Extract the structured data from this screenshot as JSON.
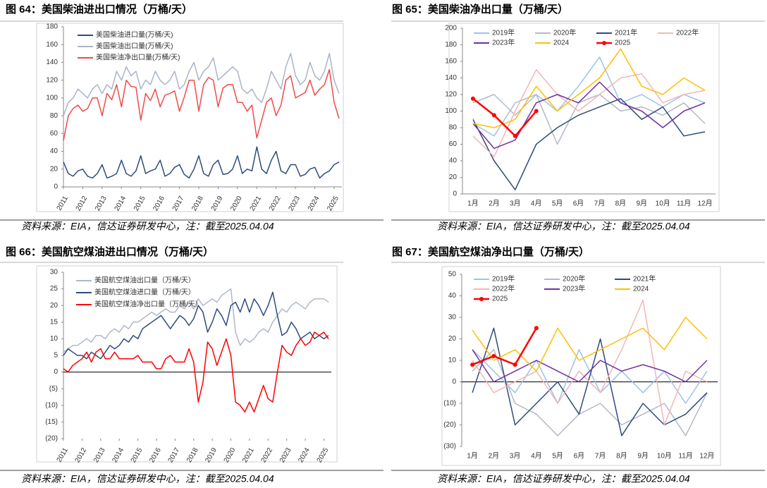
{
  "chart_data": [
    {
      "type": "line",
      "title": "图 64：美国柴油进出口情况（万桶/天）",
      "source": "资料来源：EIA，信达证券研发中心，注：截至2025.04.04",
      "legend_loc": "upper left",
      "xlim": [
        2011,
        2025.4
      ],
      "xticks": [
        2011,
        2012,
        2013,
        2014,
        2015,
        2016,
        2017,
        2018,
        2019,
        2020,
        2021,
        2022,
        2023,
        2024,
        2025
      ],
      "ylim": [
        0,
        180
      ],
      "yticks": [
        0,
        20,
        40,
        60,
        80,
        100,
        120,
        140,
        160,
        180
      ],
      "x": [
        2011,
        2011.25,
        2011.5,
        2011.75,
        2012,
        2012.25,
        2012.5,
        2012.75,
        2013,
        2013.25,
        2013.5,
        2013.75,
        2014,
        2014.25,
        2014.5,
        2014.75,
        2015,
        2015.25,
        2015.5,
        2015.75,
        2016,
        2016.25,
        2016.5,
        2016.75,
        2017,
        2017.25,
        2017.5,
        2017.75,
        2018,
        2018.25,
        2018.5,
        2018.75,
        2019,
        2019.25,
        2019.5,
        2019.75,
        2020,
        2020.25,
        2020.5,
        2020.75,
        2021,
        2021.25,
        2021.5,
        2021.75,
        2022,
        2022.25,
        2022.5,
        2022.75,
        2023,
        2023.25,
        2023.5,
        2023.75,
        2024,
        2024.25,
        2024.5,
        2024.75,
        2025,
        2025.25
      ],
      "series": [
        {
          "name": "美国柴油进口量(万桶/天)",
          "color": "#2f4b7c",
          "values": [
            28,
            15,
            12,
            18,
            20,
            12,
            10,
            15,
            25,
            10,
            12,
            15,
            30,
            15,
            12,
            18,
            35,
            15,
            18,
            20,
            30,
            12,
            15,
            22,
            25,
            14,
            10,
            20,
            35,
            15,
            12,
            25,
            30,
            14,
            15,
            20,
            35,
            15,
            20,
            18,
            45,
            20,
            15,
            30,
            40,
            18,
            15,
            25,
            25,
            12,
            14,
            20,
            22,
            10,
            15,
            18,
            25,
            28
          ]
        },
        {
          "name": "美国柴油出口量(万桶/天)",
          "color": "#a9b4c8",
          "values": [
            80,
            95,
            100,
            110,
            105,
            100,
            110,
            115,
            105,
            115,
            110,
            130,
            120,
            135,
            125,
            130,
            110,
            120,
            115,
            130,
            120,
            115,
            120,
            130,
            110,
            115,
            130,
            140,
            120,
            130,
            135,
            145,
            120,
            125,
            130,
            135,
            130,
            110,
            105,
            110,
            100,
            95,
            110,
            130,
            120,
            110,
            135,
            150,
            125,
            115,
            120,
            140,
            125,
            120,
            130,
            150,
            120,
            105
          ]
        },
        {
          "name": "美国柴油净出口量(万桶/天)",
          "color": "#f04a4a",
          "values": [
            52,
            80,
            88,
            92,
            85,
            88,
            100,
            100,
            80,
            105,
            98,
            115,
            90,
            120,
            113,
            112,
            75,
            105,
            97,
            110,
            90,
            103,
            105,
            108,
            85,
            101,
            120,
            120,
            85,
            115,
            123,
            120,
            90,
            111,
            115,
            115,
            95,
            95,
            85,
            92,
            55,
            75,
            95,
            100,
            80,
            92,
            120,
            125,
            100,
            103,
            106,
            120,
            103,
            110,
            115,
            132,
            95,
            77
          ]
        }
      ]
    },
    {
      "type": "line",
      "title": "图 65：美国柴油净出口量（万桶/天）",
      "source": "资料来源：EIA，信达证券研发中心，注：截至2025.04.04",
      "legend_loc": "upper left",
      "categories": [
        "1月",
        "2月",
        "3月",
        "4月",
        "5月",
        "6月",
        "7月",
        "8月",
        "9月",
        "10月",
        "11月",
        "12月"
      ],
      "ylim": [
        0,
        200
      ],
      "yticks": [
        0,
        20,
        40,
        60,
        80,
        100,
        120,
        140,
        160,
        180,
        200
      ],
      "series": [
        {
          "name": "2019年",
          "color": "#9dc3e6",
          "values": [
            85,
            70,
            110,
            120,
            100,
            130,
            165,
            110,
            120,
            105,
            120,
            110
          ]
        },
        {
          "name": "2020年",
          "color": "#b4b9c8",
          "values": [
            110,
            120,
            95,
            120,
            60,
            110,
            120,
            100,
            105,
            95,
            110,
            85
          ]
        },
        {
          "name": "2021年",
          "color": "#2f4b7c",
          "values": [
            90,
            40,
            5,
            60,
            80,
            95,
            105,
            115,
            90,
            105,
            70,
            75
          ]
        },
        {
          "name": "2022年",
          "color": "#f4b6b6",
          "values": [
            70,
            45,
            100,
            150,
            120,
            100,
            120,
            140,
            145,
            110,
            120,
            125
          ]
        },
        {
          "name": "2023年",
          "color": "#7030a0",
          "values": [
            85,
            55,
            65,
            110,
            120,
            110,
            135,
            110,
            100,
            80,
            100,
            110
          ]
        },
        {
          "name": "2024",
          "color": "#ffc000",
          "values": [
            85,
            80,
            90,
            130,
            100,
            120,
            140,
            175,
            130,
            120,
            140,
            125
          ]
        },
        {
          "name": "2025",
          "color": "#ff0000",
          "markers": true,
          "values": [
            115,
            95,
            70,
            100,
            null,
            null,
            null,
            null,
            null,
            null,
            null,
            null
          ]
        }
      ]
    },
    {
      "type": "line",
      "title": "图 66：美国航空煤油进出口情况（万桶/天）",
      "source": "资料来源：EIA，信达证券研发中心，注：截至2025.04.04",
      "legend_loc": "upper left",
      "negative_tick_color": "#ff0000",
      "xlim": [
        2011,
        2025.4
      ],
      "xticks": [
        2011,
        2012,
        2013,
        2014,
        2015,
        2016,
        2017,
        2018,
        2019,
        2020,
        2021,
        2022,
        2023,
        2024,
        2025
      ],
      "ylim": [
        -20,
        30
      ],
      "yticks": [
        {
          "value": -20,
          "label": "(20)"
        },
        {
          "value": -15,
          "label": "(15)"
        },
        {
          "value": -10,
          "label": "(10)"
        },
        {
          "value": -5,
          "label": "(5)"
        },
        0,
        5,
        10,
        15,
        20,
        25,
        30
      ],
      "x": [
        2011,
        2011.25,
        2011.5,
        2011.75,
        2012,
        2012.25,
        2012.5,
        2012.75,
        2013,
        2013.25,
        2013.5,
        2013.75,
        2014,
        2014.25,
        2014.5,
        2014.75,
        2015,
        2015.25,
        2015.5,
        2015.75,
        2016,
        2016.25,
        2016.5,
        2016.75,
        2017,
        2017.25,
        2017.5,
        2017.75,
        2018,
        2018.25,
        2018.5,
        2018.75,
        2019,
        2019.25,
        2019.5,
        2019.75,
        2020,
        2020.25,
        2020.5,
        2020.75,
        2021,
        2021.25,
        2021.5,
        2021.75,
        2022,
        2022.25,
        2022.5,
        2022.75,
        2023,
        2023.25,
        2023.5,
        2023.75,
        2024,
        2024.25,
        2024.5,
        2024.75,
        2025,
        2025.25
      ],
      "series": [
        {
          "name": "美国航空煤油出口量（万桶/天）",
          "color": "#b0b8c8",
          "values": [
            6,
            7,
            8,
            8,
            9,
            10,
            9,
            11,
            11,
            10,
            12,
            13,
            12,
            14,
            13,
            15,
            15,
            16,
            17,
            18,
            17,
            18,
            19,
            18,
            18,
            20,
            19,
            21,
            19,
            22,
            20,
            21,
            22,
            21,
            23,
            24,
            25,
            12,
            8,
            10,
            9,
            10,
            12,
            13,
            12,
            15,
            17,
            19,
            18,
            20,
            21,
            20,
            19,
            21,
            22,
            22,
            22,
            21
          ]
        },
        {
          "name": "美国航空煤油进口量（万桶/天）",
          "color": "#2f4b7c",
          "values": [
            5,
            7,
            6,
            5,
            5,
            4,
            6,
            5,
            4,
            6,
            8,
            7,
            8,
            10,
            9,
            11,
            10,
            13,
            14,
            15,
            16,
            17,
            15,
            13,
            15,
            17,
            16,
            14,
            16,
            20,
            18,
            12,
            15,
            19,
            17,
            14,
            20,
            21,
            18,
            22,
            18,
            22,
            20,
            17,
            20,
            24,
            17,
            11,
            12,
            15,
            13,
            10,
            11,
            12,
            10,
            11,
            10,
            11
          ]
        },
        {
          "name": "美国航空煤油净出口量（万桶/天）",
          "color": "#ff0000",
          "values": [
            1,
            0,
            2,
            3,
            4,
            6,
            3,
            6,
            7,
            4,
            4,
            6,
            4,
            4,
            4,
            4,
            5,
            3,
            3,
            3,
            1,
            1,
            4,
            5,
            3,
            3,
            3,
            7,
            3,
            -9,
            -3,
            9,
            7,
            2,
            6,
            10,
            5,
            -9,
            -10,
            -12,
            -9,
            -12,
            -8,
            -4,
            -8,
            -9,
            0,
            8,
            6,
            5,
            8,
            10,
            8,
            9,
            12,
            11,
            12,
            10
          ]
        }
      ]
    },
    {
      "type": "line",
      "title": "图 67：美国航空煤油净出口量（万桶/天）",
      "source": "资料来源：EIA，信达证券研发中心，注：截至2025.04.04",
      "legend_loc": "upper left",
      "negative_tick_color": "#ff0000",
      "categories": [
        "1月",
        "2月",
        "3月",
        "4月",
        "5月",
        "6月",
        "7月",
        "8月",
        "9月",
        "10月",
        "11月",
        "12月"
      ],
      "ylim": [
        -30,
        50
      ],
      "yticks": [
        {
          "value": -30,
          "label": "(30)"
        },
        {
          "value": -20,
          "label": "(20)"
        },
        {
          "value": -10,
          "label": "(10)"
        },
        0,
        10,
        20,
        30,
        40,
        50
      ],
      "series": [
        {
          "name": "2019年",
          "color": "#9dc3e6",
          "values": [
            15,
            5,
            -5,
            10,
            -10,
            15,
            -5,
            5,
            -5,
            5,
            -10,
            5
          ]
        },
        {
          "name": "2020年",
          "color": "#b4b9c8",
          "values": [
            5,
            15,
            -10,
            -15,
            -25,
            -15,
            -10,
            -20,
            -15,
            -10,
            -25,
            -5
          ]
        },
        {
          "name": "2021年",
          "color": "#2f4b7c",
          "values": [
            -5,
            25,
            -20,
            -10,
            0,
            -15,
            20,
            -25,
            -10,
            -20,
            -15,
            -5
          ]
        },
        {
          "name": "2022年",
          "color": "#f4b6b6",
          "values": [
            10,
            -5,
            0,
            5,
            -10,
            5,
            -5,
            15,
            38,
            -20,
            5,
            0
          ]
        },
        {
          "name": "2023年",
          "color": "#7030a0",
          "values": [
            15,
            0,
            5,
            10,
            5,
            0,
            10,
            5,
            8,
            5,
            0,
            10
          ]
        },
        {
          "name": "2024",
          "color": "#ffc000",
          "values": [
            24,
            10,
            15,
            5,
            25,
            10,
            15,
            20,
            25,
            15,
            30,
            20
          ]
        },
        {
          "name": "2025",
          "color": "#ff0000",
          "markers": true,
          "values": [
            8,
            12,
            8,
            25,
            null,
            null,
            null,
            null,
            null,
            null,
            null,
            null
          ]
        }
      ]
    }
  ]
}
